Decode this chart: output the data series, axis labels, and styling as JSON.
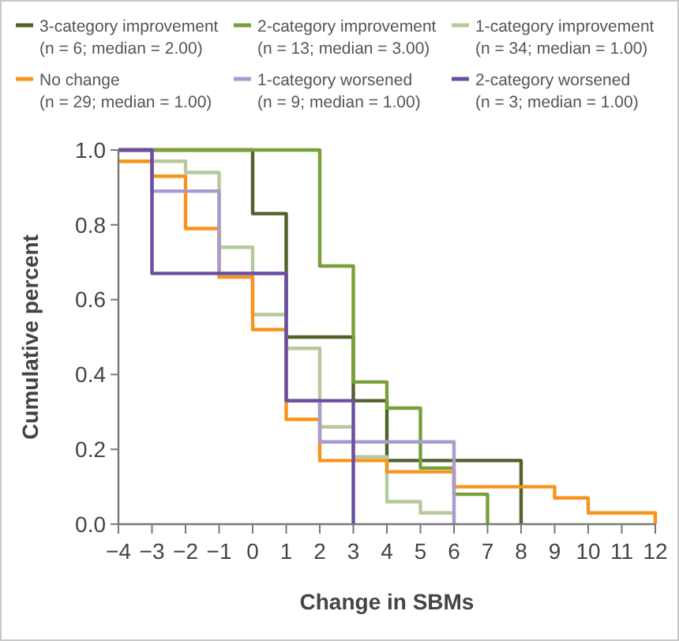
{
  "chart_data": {
    "type": "step",
    "xlabel": "Change in SBMs",
    "ylabel": "Cumulative percent",
    "legend": "top",
    "grid": false,
    "marker": "none",
    "line_style": "solid",
    "xlim": [
      -4,
      12
    ],
    "xticks": [
      {
        "value": -4,
        "label": "−4"
      },
      {
        "value": -3,
        "label": "−3"
      },
      {
        "value": -2,
        "label": "−2"
      },
      {
        "value": -1,
        "label": "−1"
      },
      0,
      1,
      2,
      3,
      4,
      5,
      6,
      7,
      8,
      9,
      10,
      11,
      12
    ],
    "ylim": [
      0,
      1
    ],
    "yticks": [
      {
        "value": 0,
        "label": "0.0"
      },
      {
        "value": 0.2,
        "label": "0.2"
      },
      {
        "value": 0.4,
        "label": "0.4"
      },
      {
        "value": 0.6,
        "label": "0.6"
      },
      {
        "value": 0.8,
        "label": "0.8"
      },
      {
        "value": 1,
        "label": "1.0"
      }
    ],
    "series": [
      {
        "name": "3-category improvement (n = 6; median = 2.00)",
        "color": "#4f6228",
        "x": [
          -4,
          0,
          1,
          3,
          4,
          8
        ],
        "values": [
          1,
          0.83,
          0.5,
          0.33,
          0.17,
          0
        ]
      },
      {
        "name": "2-category improvement (n = 13; median = 3.00)",
        "color": "#77a03a",
        "x": [
          -4,
          2,
          3,
          4,
          5,
          6,
          7
        ],
        "values": [
          1,
          0.69,
          0.38,
          0.31,
          0.15,
          0.08,
          0
        ]
      },
      {
        "name": "1-category improvement (n = 34; median = 1.00)",
        "color": "#b5c99a",
        "x": [
          -4,
          -2,
          -1,
          0,
          1,
          2,
          3,
          4,
          5,
          6
        ],
        "values": [
          0.97,
          0.94,
          0.74,
          0.56,
          0.47,
          0.26,
          0.18,
          0.06,
          0.03,
          0
        ]
      },
      {
        "name": "No change (n = 29; median = 1.00)",
        "color": "#f7941d",
        "x": [
          -4,
          -3,
          -2,
          -1,
          0,
          1,
          2,
          4,
          6,
          9,
          10,
          12
        ],
        "values": [
          0.97,
          0.93,
          0.79,
          0.66,
          0.52,
          0.28,
          0.17,
          0.14,
          0.1,
          0.07,
          0.03,
          0
        ]
      },
      {
        "name": "1-category worsened (n = 9; median = 1.00)",
        "color": "#a99bd0",
        "x": [
          -4,
          -3,
          -1,
          1,
          2,
          6
        ],
        "values": [
          1,
          0.89,
          0.67,
          0.33,
          0.22,
          0
        ]
      },
      {
        "name": "2-category worsened (n = 3; median = 1.00)",
        "color": "#6a4fa0",
        "x": [
          -4,
          -3,
          1,
          3
        ],
        "values": [
          1,
          0.67,
          0.33,
          0
        ]
      }
    ]
  }
}
